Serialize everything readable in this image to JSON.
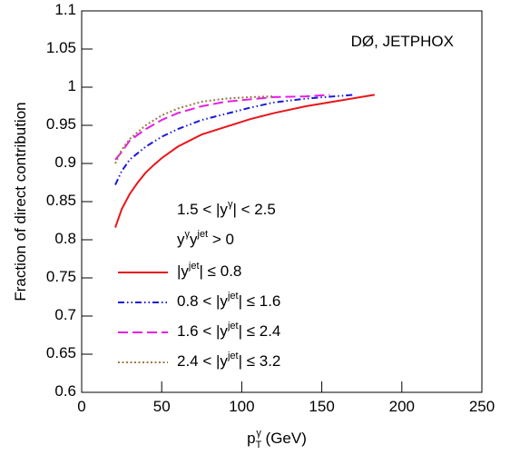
{
  "chart_data": {
    "type": "line",
    "xlabel": "p_{T}^{γ} (GeV)",
    "ylabel": "Fraction of direct contribution",
    "annotations": [
      "DØ, JETPHOX",
      "1.5 < |y^{γ}| < 2.5",
      "y^{γ}y^{jet} > 0"
    ],
    "xlim": [
      0,
      250
    ],
    "xticks": [
      0,
      50,
      100,
      150,
      200,
      250
    ],
    "ylim": [
      0.6,
      1.1
    ],
    "yticks": [
      0.6,
      0.65,
      0.7,
      0.75,
      0.8,
      0.85,
      0.9,
      0.95,
      1,
      1.05,
      1.1
    ],
    "series": [
      {
        "name": "|y^{jet}| ≤ 0.8",
        "color": "#e8161b",
        "dash": "solid",
        "x": [
          21,
          25,
          30,
          35,
          40,
          45,
          50,
          60,
          75,
          90,
          105,
          120,
          140,
          160,
          183
        ],
        "values": [
          0.816,
          0.84,
          0.86,
          0.875,
          0.888,
          0.898,
          0.907,
          0.922,
          0.938,
          0.948,
          0.958,
          0.966,
          0.975,
          0.982,
          0.99
        ]
      },
      {
        "name": "0.8 < |y^{jet}| ≤ 1.6",
        "color": "#1a1ad8",
        "dash": "dashdot",
        "x": [
          21,
          25,
          30,
          40,
          50,
          60,
          75,
          90,
          105,
          120,
          140,
          170
        ],
        "values": [
          0.872,
          0.89,
          0.905,
          0.922,
          0.935,
          0.945,
          0.957,
          0.965,
          0.973,
          0.98,
          0.985,
          0.99
        ]
      },
      {
        "name": "1.6 < |y^{jet}| ≤ 2.4",
        "color": "#e61ee6",
        "dash": "dashed",
        "x": [
          21,
          25,
          30,
          40,
          50,
          60,
          75,
          90,
          105,
          120,
          140,
          155
        ],
        "values": [
          0.905,
          0.915,
          0.93,
          0.945,
          0.957,
          0.966,
          0.975,
          0.981,
          0.984,
          0.987,
          0.988,
          0.99
        ]
      },
      {
        "name": "2.4 < |y^{jet}| ≤ 3.2",
        "color": "#9c7a4a",
        "dash": "dotted",
        "x": [
          21,
          25,
          30,
          40,
          50,
          60,
          75,
          90,
          105,
          120
        ],
        "values": [
          0.9,
          0.918,
          0.932,
          0.95,
          0.963,
          0.972,
          0.981,
          0.985,
          0.987,
          0.988
        ]
      }
    ]
  }
}
